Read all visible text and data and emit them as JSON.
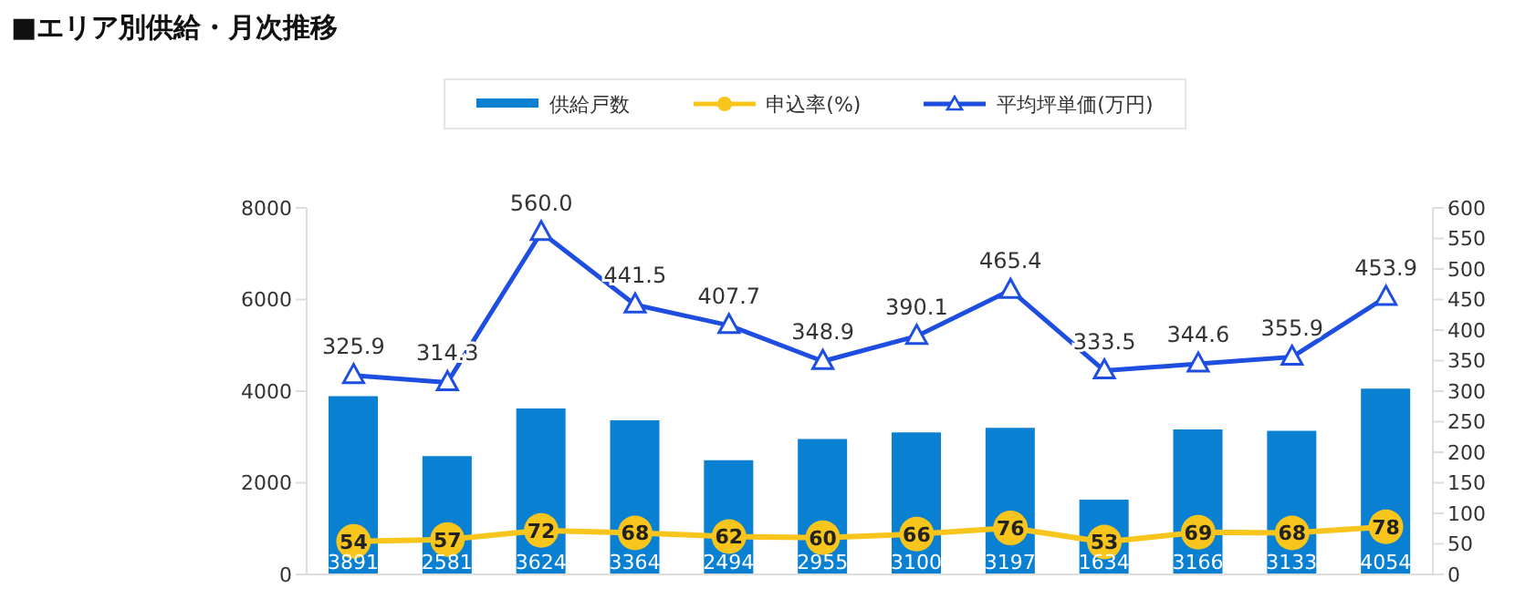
{
  "chart_data": {
    "type": "bar",
    "title": "■エリア別供給・月次推移",
    "categories": [
      null,
      null,
      null,
      null,
      null,
      null,
      null,
      null,
      null,
      null,
      null,
      null
    ],
    "series": [
      {
        "name": "供給戸数",
        "color": "#0a80d2",
        "values": [
          3891,
          2581,
          3624,
          3364,
          2494,
          2955,
          3100,
          3197,
          1634,
          3166,
          3133,
          4054
        ]
      },
      {
        "name": "申込率(%)",
        "type": "line",
        "axis": "y2",
        "marker": "circle",
        "color": "#f7c51c",
        "values": [
          54,
          57,
          72,
          68,
          62,
          60,
          66,
          76,
          53,
          69,
          68,
          78
        ]
      },
      {
        "name": "平均坪単価(万円)",
        "type": "line",
        "axis": "y2",
        "marker": "triangle",
        "color": "#1e4ee0",
        "values": [
          325.9,
          314.3,
          560.0,
          441.5,
          407.7,
          348.9,
          390.1,
          465.4,
          333.5,
          344.6,
          355.9,
          453.9
        ],
        "value_labels": [
          "325.9",
          "314.3",
          "560.0",
          "441.5",
          "407.7",
          "348.9",
          "390.1",
          "465.4",
          "333.5",
          "344.6",
          "355.9",
          "453.9"
        ]
      }
    ],
    "ylim": [
      0,
      8000
    ],
    "yticks": [
      0,
      2000,
      4000,
      6000,
      8000
    ],
    "y2lim": [
      0,
      600
    ],
    "y2ticks": [
      0,
      50,
      100,
      150,
      200,
      250,
      300,
      350,
      400,
      450,
      500,
      550,
      600
    ],
    "data_labels": true,
    "legend": "top",
    "grid": false
  }
}
